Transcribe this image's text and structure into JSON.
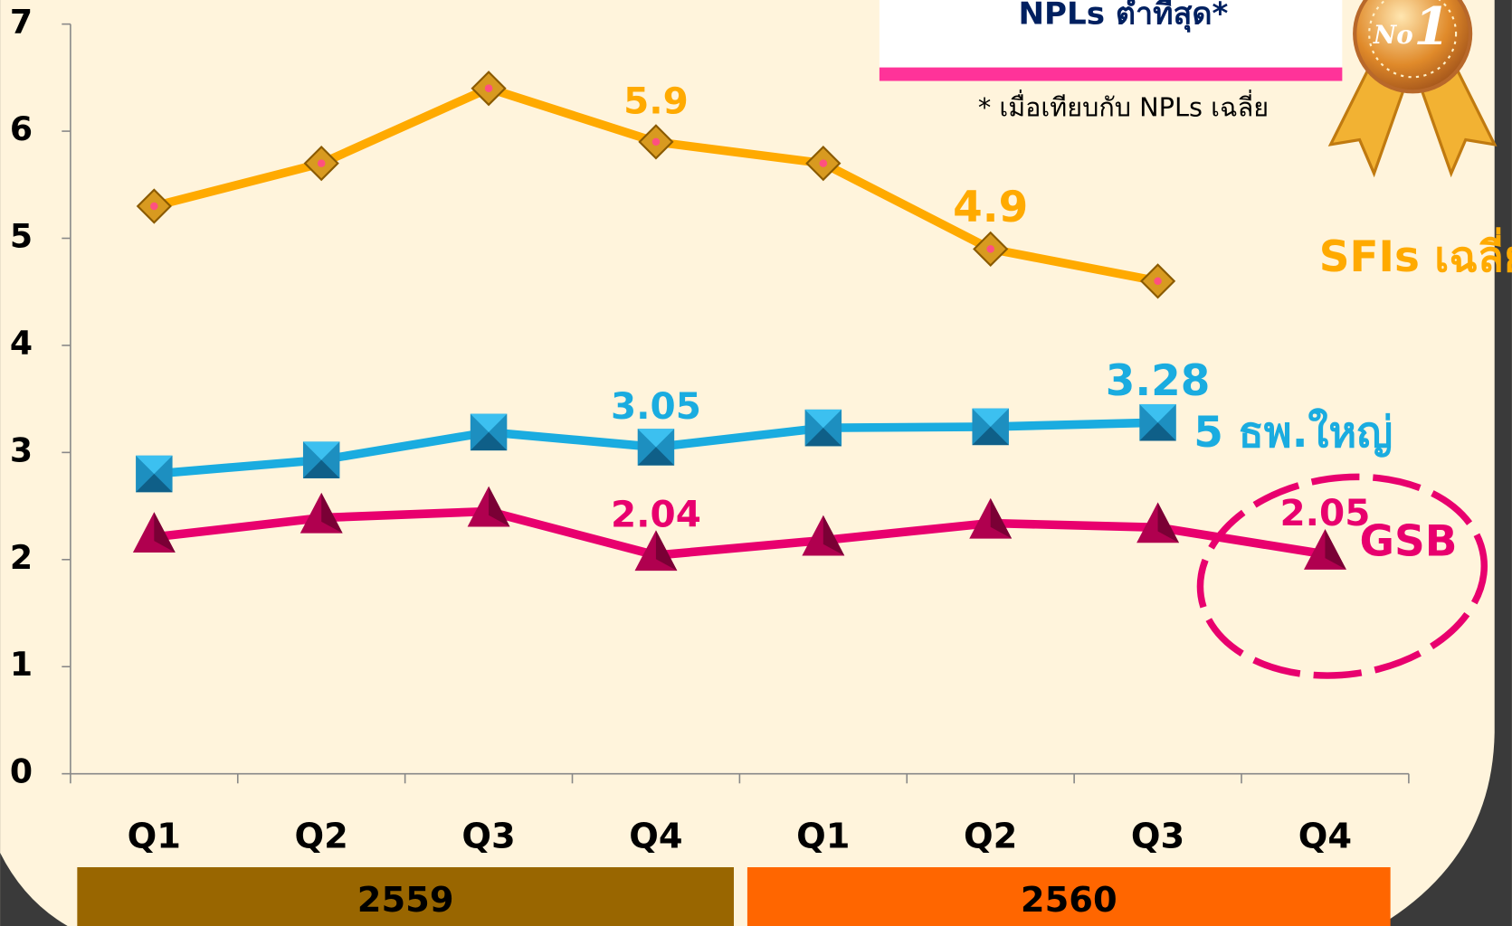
{
  "chart_data": {
    "type": "line",
    "categories": [
      "Q1",
      "Q2",
      "Q3",
      "Q4",
      "Q1",
      "Q2",
      "Q3",
      "Q4"
    ],
    "groups": [
      {
        "label": "2559",
        "color": "#996600",
        "span": [
          0,
          3
        ]
      },
      {
        "label": "2560",
        "color": "#ff6600",
        "span": [
          4,
          7
        ]
      }
    ],
    "ylim": [
      0,
      7
    ],
    "yticks": [
      0,
      1,
      2,
      3,
      4,
      5,
      6,
      7
    ],
    "series": [
      {
        "name": "SFIs เฉลี่ย",
        "color": "#ffaa00",
        "marker": "diamond",
        "values": [
          5.3,
          5.7,
          6.4,
          5.9,
          5.7,
          4.9,
          4.6,
          null
        ],
        "labeled_points": [
          3,
          5
        ]
      },
      {
        "name": "5 ธพ.ใหญ่",
        "color": "#1aace0",
        "marker": "square",
        "values": [
          2.8,
          2.93,
          3.19,
          3.05,
          3.23,
          3.24,
          3.28,
          null
        ],
        "labeled_points": [
          3,
          6
        ]
      },
      {
        "name": "GSB",
        "color": "#e8006e",
        "marker": "triangle",
        "values": [
          2.21,
          2.39,
          2.45,
          2.04,
          2.18,
          2.34,
          2.3,
          2.05
        ],
        "labeled_points": [
          3,
          7
        ]
      }
    ],
    "callout": {
      "title": "NPLs ต่ำที่สุด*",
      "note": "* เมื่อเทียบกับ NPLs เฉลี่ย"
    },
    "medal": {
      "prefix": "No",
      "number": "1"
    }
  }
}
